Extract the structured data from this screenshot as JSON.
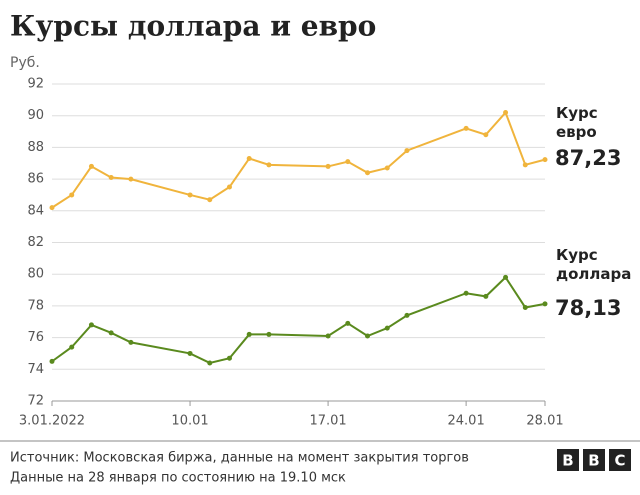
{
  "chart_data": {
    "type": "line",
    "title": "Курсы доллара и евро",
    "ylabel": "Руб.",
    "x": [
      "2022-01-03",
      "2022-01-04",
      "2022-01-05",
      "2022-01-06",
      "2022-01-07",
      "2022-01-10",
      "2022-01-11",
      "2022-01-12",
      "2022-01-13",
      "2022-01-14",
      "2022-01-17",
      "2022-01-18",
      "2022-01-19",
      "2022-01-20",
      "2022-01-21",
      "2022-01-24",
      "2022-01-25",
      "2022-01-26",
      "2022-01-27",
      "2022-01-28"
    ],
    "series": [
      {
        "name": "Курс евро",
        "color": "#f0b43c",
        "values": [
          84.2,
          85.0,
          86.8,
          86.1,
          86.0,
          85.0,
          84.7,
          85.5,
          87.3,
          86.9,
          86.8,
          87.1,
          86.4,
          86.7,
          87.8,
          89.2,
          88.8,
          90.2,
          86.9,
          87.23
        ],
        "value_labels": [
          null,
          null,
          null,
          null,
          null,
          null,
          null,
          null,
          null,
          null,
          null,
          null,
          null,
          null,
          null,
          null,
          null,
          null,
          null,
          "87,23"
        ]
      },
      {
        "name": "Курс доллара",
        "color": "#5a8a1e",
        "values": [
          74.5,
          75.4,
          76.8,
          76.3,
          75.7,
          75.0,
          74.4,
          74.7,
          76.2,
          76.2,
          76.1,
          76.9,
          76.1,
          76.6,
          77.4,
          78.8,
          78.6,
          79.8,
          77.9,
          78.13
        ],
        "value_labels": [
          null,
          null,
          null,
          null,
          null,
          null,
          null,
          null,
          null,
          null,
          null,
          null,
          null,
          null,
          null,
          null,
          null,
          null,
          null,
          "78,13"
        ]
      }
    ],
    "xlim": [
      "2022-01-03",
      "2022-01-28"
    ],
    "xticks": [
      {
        "value": "2022-01-03",
        "label": "3.01.2022"
      },
      {
        "value": "2022-01-10",
        "label": "10.01"
      },
      {
        "value": "2022-01-17",
        "label": "17.01"
      },
      {
        "value": "2022-01-24",
        "label": "24.01"
      },
      {
        "value": "2022-01-28",
        "label": "28.01"
      }
    ],
    "ylim": [
      72,
      92
    ],
    "yticks": [
      72,
      74,
      76,
      78,
      80,
      82,
      84,
      86,
      88,
      90,
      92
    ],
    "grid": true,
    "source": "Источник: Московская биржа, данные на момент закрытия торгов",
    "note": "Данные на 28 января по состоянию на 19.10 мск",
    "logo": [
      "B",
      "B",
      "C"
    ]
  }
}
